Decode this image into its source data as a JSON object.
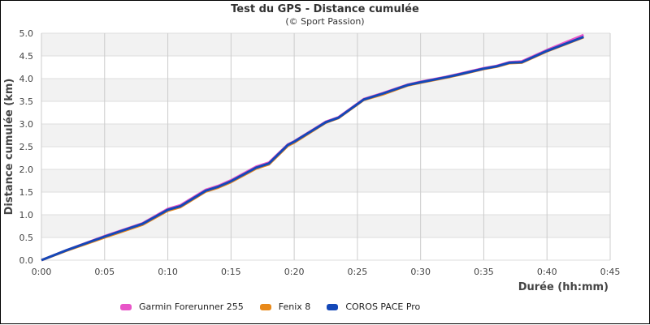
{
  "header": {
    "title": "Test du GPS - Distance cumulée",
    "subtitle": "(© Sport Passion)"
  },
  "axes": {
    "x_label": "Durée (hh:mm)",
    "y_label": "Distance cumulée (km)",
    "x_ticks": [
      "0:00",
      "0:05",
      "0:10",
      "0:15",
      "0:20",
      "0:25",
      "0:30",
      "0:35",
      "0:40",
      "0:45"
    ],
    "y_ticks": [
      "0.0",
      "0.5",
      "1.0",
      "1.5",
      "2.0",
      "2.5",
      "3.0",
      "3.5",
      "4.0",
      "4.5",
      "5.0"
    ]
  },
  "legend": [
    {
      "label": "Garmin Forerunner 255",
      "color": "#e855c8"
    },
    {
      "label": "Fenix 8",
      "color": "#e8891a"
    },
    {
      "label": "COROS PACE Pro",
      "color": "#1448b8"
    }
  ],
  "chart_data": {
    "type": "line",
    "title": "Test du GPS - Distance cumulée",
    "subtitle": "(© Sport Passion)",
    "xlabel": "Durée (hh:mm)",
    "ylabel": "Distance cumulée (km)",
    "xlim": [
      0,
      45
    ],
    "ylim": [
      0,
      5
    ],
    "x_unit": "minutes",
    "grid": true,
    "legend_position": "bottom",
    "x": [
      0,
      2,
      5,
      8,
      10,
      11,
      13,
      14,
      15,
      17,
      18,
      19.5,
      20,
      22.5,
      23.5,
      25.5,
      27,
      29,
      30,
      32,
      33,
      35,
      36,
      37,
      38,
      40,
      42.9
    ],
    "series": [
      {
        "name": "Garmin Forerunner 255",
        "color": "#e855c8",
        "values": [
          0,
          0.22,
          0.53,
          0.81,
          1.13,
          1.21,
          1.55,
          1.64,
          1.76,
          2.06,
          2.15,
          2.55,
          2.62,
          3.05,
          3.15,
          3.55,
          3.68,
          3.87,
          3.93,
          4.04,
          4.1,
          4.23,
          4.28,
          4.36,
          4.38,
          4.63,
          4.96
        ]
      },
      {
        "name": "Fenix 8",
        "color": "#e8891a",
        "values": [
          0,
          0.21,
          0.5,
          0.78,
          1.09,
          1.17,
          1.51,
          1.6,
          1.72,
          2.02,
          2.11,
          2.52,
          2.59,
          3.03,
          3.13,
          3.53,
          3.65,
          3.85,
          3.91,
          4.02,
          4.08,
          4.21,
          4.26,
          4.34,
          4.35,
          4.6,
          4.91
        ]
      },
      {
        "name": "COROS PACE Pro",
        "color": "#1448b8",
        "values": [
          0,
          0.22,
          0.52,
          0.8,
          1.11,
          1.19,
          1.53,
          1.62,
          1.74,
          2.04,
          2.13,
          2.54,
          2.61,
          3.04,
          3.14,
          3.54,
          3.67,
          3.86,
          3.92,
          4.03,
          4.09,
          4.22,
          4.27,
          4.35,
          4.36,
          4.61,
          4.92
        ]
      }
    ]
  }
}
